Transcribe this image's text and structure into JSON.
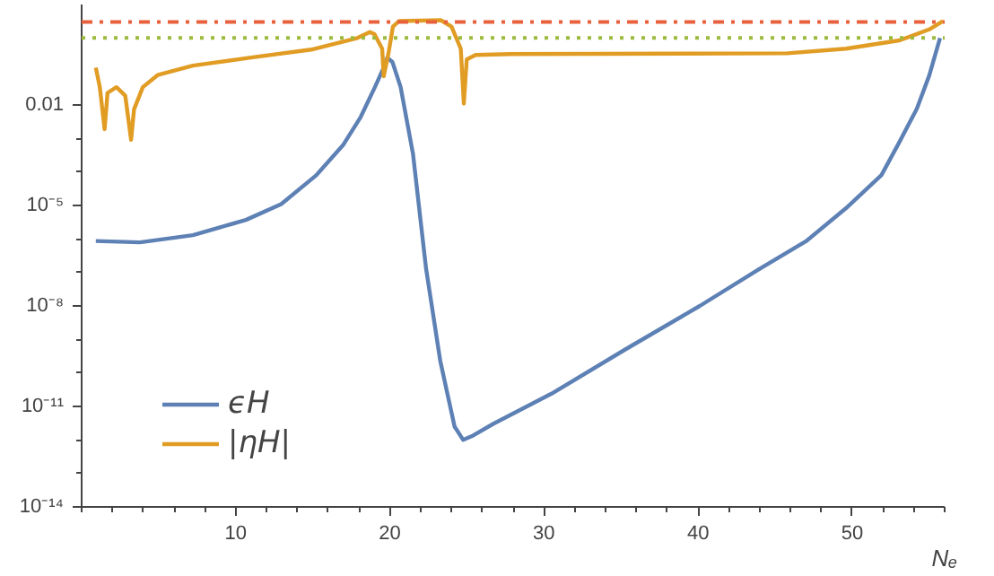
{
  "chart_data": {
    "type": "line",
    "xlabel": "Nₑ",
    "log": "y",
    "grid": false,
    "legend": "bottom left",
    "line_style": "solid",
    "marker": "none",
    "xlim": [
      0,
      56
    ],
    "xticks": [
      10,
      20,
      30,
      40,
      50
    ],
    "ylim": [
      1e-14,
      10
    ],
    "yticks": [
      {
        "value": 1e-14,
        "label": "10⁻¹⁴"
      },
      {
        "value": 1e-11,
        "label": "10⁻¹¹"
      },
      {
        "value": 1e-08,
        "label": "10⁻⁸"
      },
      {
        "value": 1e-05,
        "label": "10⁻⁵"
      },
      0.01
    ],
    "series": [
      {
        "name": "ϵH",
        "color": "#5e81b5",
        "x": [
          0.92,
          3.78,
          7.22,
          10.66,
          12.95,
          15.24,
          16.96,
          18.11,
          19.03,
          19.6,
          19.83,
          20.17,
          20.7,
          21.5,
          22.35,
          23.27,
          24.2,
          24.76,
          25.33,
          26.7,
          30.49,
          35.3,
          40.11,
          43.9,
          47.0,
          49.6,
          51.9,
          53.07,
          54.2,
          55.0,
          55.7
        ],
        "values": [
          8.7e-07,
          7.9e-07,
          1.3e-06,
          3.7e-06,
          1.1e-05,
          8.1e-05,
          0.00063,
          0.0044,
          0.034,
          0.13,
          0.26,
          0.19,
          0.034,
          0.00035,
          1.3e-07,
          2.3e-10,
          2.5e-12,
          1e-12,
          1.3e-12,
          3e-12,
          2.4e-11,
          5.1e-10,
          1e-08,
          1.2e-07,
          8.5e-07,
          8.3e-06,
          8.1e-05,
          0.00079,
          0.0078,
          0.076,
          1.0
        ]
      },
      {
        "name": "|ηH|",
        "color": "#e19c24",
        "x": [
          0.92,
          1.18,
          1.49,
          1.68,
          2.26,
          2.83,
          3.21,
          3.4,
          3.97,
          4.93,
          7.22,
          11.0,
          14.9,
          17.9,
          18.7,
          19.0,
          19.5,
          19.6,
          19.9,
          20.2,
          20.6,
          23.3,
          24.0,
          24.6,
          24.8,
          24.99,
          25.56,
          27.85,
          45.8,
          49.6,
          53.07,
          55.0,
          55.9
        ],
        "values": [
          0.13,
          0.034,
          0.0019,
          0.023,
          0.034,
          0.019,
          0.00091,
          0.0074,
          0.034,
          0.078,
          0.15,
          0.26,
          0.45,
          1.0,
          1.5,
          1.3,
          0.48,
          0.072,
          0.33,
          2.2,
          3.2,
          3.4,
          2.2,
          0.48,
          0.011,
          0.23,
          0.31,
          0.33,
          0.35,
          0.48,
          0.85,
          1.8,
          3.2
        ]
      }
    ],
    "ref_lines": [
      {
        "axis": "y",
        "value": 3,
        "color": "#e8603c",
        "line_style": "dashdot"
      },
      {
        "axis": "y",
        "value": 1,
        "color": "#9cbb3c",
        "line_style": "dotted"
      }
    ]
  }
}
